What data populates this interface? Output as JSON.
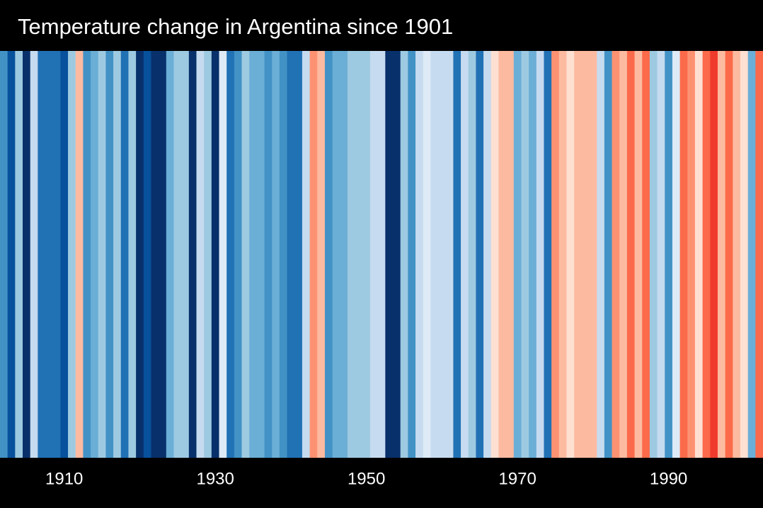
{
  "chart_data": {
    "type": "stripes",
    "title": "Temperature change in Argentina since 1901",
    "x": [
      1902,
      1903,
      1904,
      1905,
      1906,
      1907,
      1908,
      1909,
      1910,
      1911,
      1912,
      1913,
      1914,
      1915,
      1916,
      1917,
      1918,
      1919,
      1920,
      1921,
      1922,
      1923,
      1924,
      1925,
      1926,
      1927,
      1928,
      1929,
      1930,
      1931,
      1932,
      1933,
      1934,
      1935,
      1936,
      1937,
      1938,
      1939,
      1940,
      1941,
      1942,
      1943,
      1944,
      1945,
      1946,
      1947,
      1948,
      1949,
      1950,
      1951,
      1952,
      1953,
      1954,
      1955,
      1956,
      1957,
      1958,
      1959,
      1960,
      1961,
      1962,
      1963,
      1964,
      1965,
      1966,
      1967,
      1968,
      1969,
      1970,
      1971,
      1972,
      1973,
      1974,
      1975,
      1976,
      1977,
      1978,
      1979,
      1980,
      1981,
      1982,
      1983,
      1984,
      1985,
      1986,
      1987,
      1988,
      1989,
      1990,
      1991,
      1992,
      1993,
      1994,
      1995,
      1996,
      1997,
      1998,
      1999,
      2000,
      2001,
      2002
    ],
    "values": [
      -0.675,
      -0.975,
      -0.375,
      -1.125,
      -0.225,
      -0.825,
      -0.825,
      -0.825,
      -0.975,
      -0.375,
      0.225,
      -0.675,
      -0.525,
      -0.375,
      -0.675,
      -0.375,
      -0.825,
      -0.375,
      -1.125,
      -0.975,
      -1.125,
      -1.125,
      -0.525,
      -0.375,
      -0.375,
      -1.125,
      -0.225,
      -0.375,
      -1.125,
      -0.075,
      -0.825,
      -0.675,
      -0.375,
      -0.525,
      -0.525,
      -0.675,
      -0.525,
      -0.675,
      -0.825,
      -0.825,
      -0.225,
      0.375,
      0.225,
      -0.675,
      -0.525,
      -0.525,
      -0.375,
      -0.375,
      -0.375,
      -0.225,
      -0.225,
      -1.125,
      -1.125,
      -0.375,
      -0.675,
      -0.225,
      -0.075,
      -0.225,
      -0.225,
      -0.225,
      -0.825,
      -0.225,
      -0.375,
      -0.825,
      -0.225,
      0.075,
      0.225,
      0.225,
      -0.525,
      -0.375,
      -0.525,
      -0.225,
      -0.825,
      0.375,
      0.225,
      0.075,
      0.225,
      0.225,
      0.225,
      -0.225,
      -0.675,
      0.375,
      0.225,
      0.525,
      0.225,
      0.525,
      -0.375,
      -0.225,
      -0.675,
      -0.075,
      0.525,
      0.375,
      0.075,
      0.525,
      0.675,
      0.225,
      0.525,
      0.225,
      0.075,
      -0.525,
      0.525
    ],
    "colormap": [
      "#08306b",
      "#08519c",
      "#2171b5",
      "#4292c6",
      "#6baed6",
      "#9ecae1",
      "#c6dbef",
      "#deebf7",
      "#fee0d2",
      "#fcbba1",
      "#fc9272",
      "#fb6a4a",
      "#ef3b2c",
      "#cb181d",
      "#a50f15",
      "#67000d"
    ],
    "vlim": [
      -1.2,
      1.2
    ],
    "xlim": [
      1901.5,
      2002.5
    ],
    "xticks": [
      1910,
      1930,
      1950,
      1970,
      1990
    ]
  }
}
